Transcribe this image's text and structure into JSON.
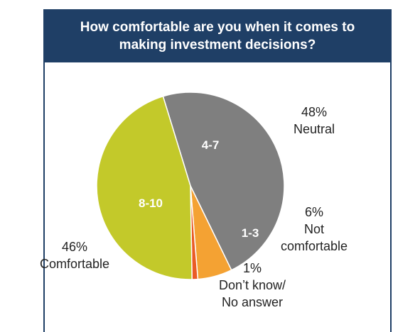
{
  "chart_data": {
    "type": "pie",
    "title": "How comfortable are you when it comes to making investment decisions?",
    "slices": [
      {
        "inner_label": "4-7",
        "value": 48,
        "pct_label": "48%",
        "name_lines": [
          "Neutral"
        ],
        "color": "#7f7f7f"
      },
      {
        "inner_label": "1-3",
        "value": 6,
        "pct_label": "6%",
        "name_lines": [
          "Not",
          "comfortable"
        ],
        "color": "#f4a233"
      },
      {
        "inner_label": "",
        "value": 1,
        "pct_label": "1%",
        "name_lines": [
          "Don’t know/",
          "No answer"
        ],
        "color": "#ea5b25"
      },
      {
        "inner_label": "8-10",
        "value": 46,
        "pct_label": "46%",
        "name_lines": [
          "Comfortable"
        ],
        "color": "#c3c92a"
      }
    ]
  }
}
